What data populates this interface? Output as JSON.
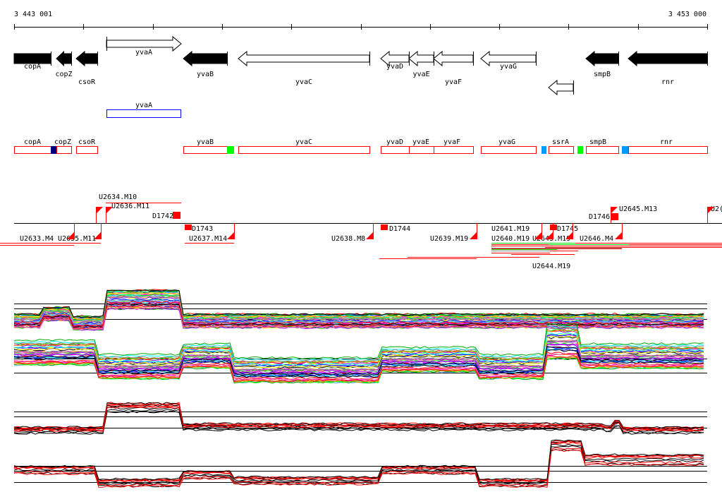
{
  "ruler": {
    "start_label": "3 443 001",
    "end_label": "3 453 000"
  },
  "genes": [
    {
      "name": "copA",
      "style": "filled",
      "strand": "-"
    },
    {
      "name": "copZ",
      "style": "filled",
      "strand": "-"
    },
    {
      "name": "csoR",
      "style": "filled",
      "strand": "-"
    },
    {
      "name": "yvaA",
      "style": "open",
      "strand": "+"
    },
    {
      "name": "yvaB",
      "style": "filled",
      "strand": "-"
    },
    {
      "name": "yvaC",
      "style": "open",
      "strand": "-"
    },
    {
      "name": "yvaD",
      "style": "open",
      "strand": "-"
    },
    {
      "name": "yvaE",
      "style": "open",
      "strand": "-"
    },
    {
      "name": "yvaF",
      "style": "open",
      "strand": "-"
    },
    {
      "name": "yvaG",
      "style": "open",
      "strand": "-"
    },
    {
      "name": "",
      "style": "open",
      "strand": "-"
    },
    {
      "name": "smpB",
      "style": "filled",
      "strand": "-"
    },
    {
      "name": "rnr",
      "style": "filled",
      "strand": "-"
    }
  ],
  "highlight_gene": {
    "name": "yvaA",
    "color": "#0000ff"
  },
  "features": [
    {
      "name": "copA"
    },
    {
      "name": "copZ"
    },
    {
      "name": "csoR"
    },
    {
      "name": "yvaB"
    },
    {
      "name": "yvaC"
    },
    {
      "name": "yvaD"
    },
    {
      "name": "yvaE"
    },
    {
      "name": "yvaF"
    },
    {
      "name": "yvaG"
    },
    {
      "name": "ssrA"
    },
    {
      "name": "smpB"
    },
    {
      "name": "rnr"
    }
  ],
  "feature_colors": {
    "outline": "#ff0000",
    "navy": "#000080",
    "green": "#00ff00",
    "blue": "#0099ff"
  },
  "transcription_units": {
    "above": [
      "U2634.M10",
      "U2636.M11",
      "D1742",
      "D1746",
      "U2645.M13",
      "U2("
    ],
    "below": [
      "U2633.M4",
      "U2635.M11",
      "D1743",
      "U2637.M14",
      "U2638.M8",
      "D1744",
      "U2639.M19",
      "U2640.M19",
      "U2641.M19",
      "U2643.M19",
      "D1745",
      "U2644.M19",
      "U2646.M4"
    ]
  },
  "colors": {
    "tu": "#ff0000",
    "green": "#00e000"
  }
}
